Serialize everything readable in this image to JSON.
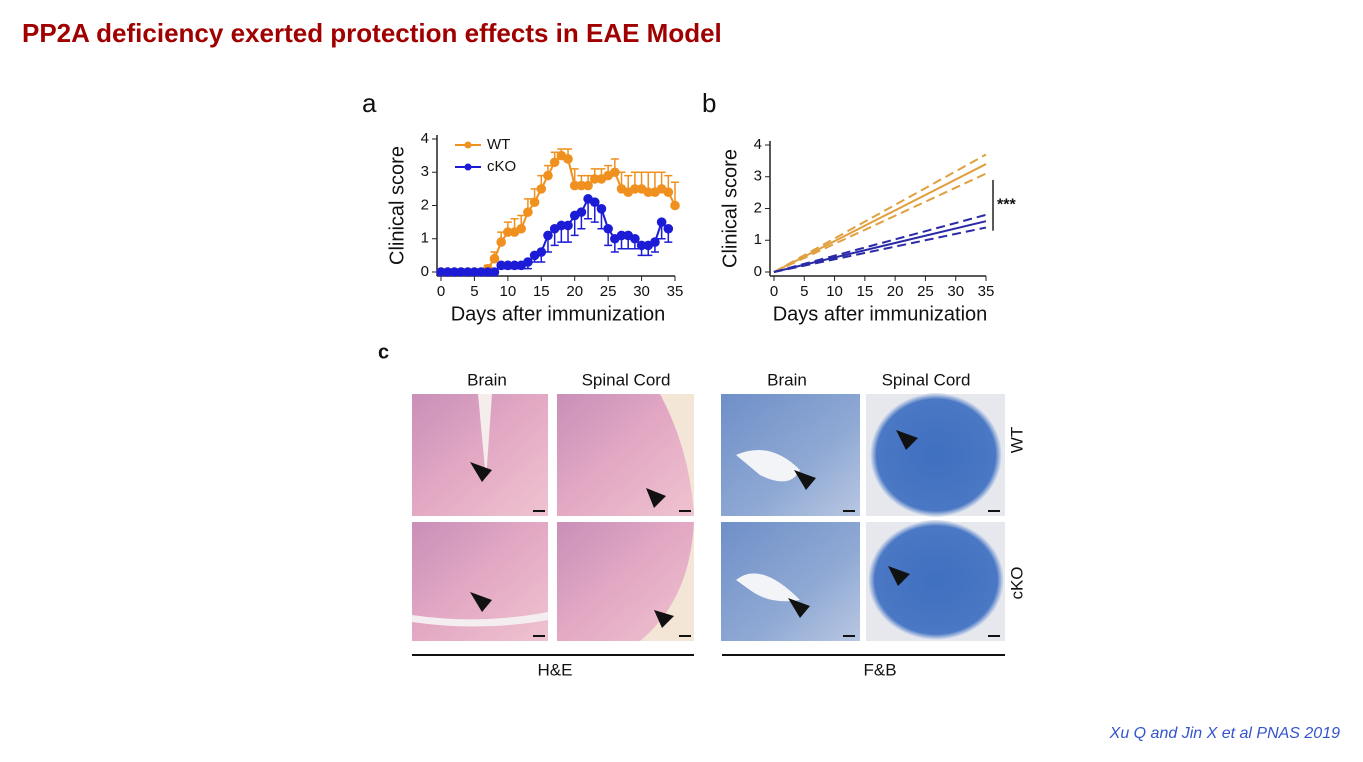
{
  "title": "PP2A deficiency exerted protection effects in EAE Model",
  "chart_data": [
    {
      "type": "line",
      "panel": "a",
      "xlabel": "Days after immunization",
      "ylabel": "Clinical score",
      "x": [
        0,
        1,
        2,
        3,
        4,
        5,
        6,
        7,
        8,
        9,
        10,
        11,
        12,
        13,
        14,
        15,
        16,
        17,
        18,
        19,
        20,
        21,
        22,
        23,
        24,
        25,
        26,
        27,
        28,
        29,
        30,
        31,
        32,
        33,
        34,
        35
      ],
      "xlim": [
        0,
        35
      ],
      "xticks": [
        0,
        5,
        10,
        15,
        20,
        25,
        30,
        35
      ],
      "ylim": [
        0,
        4
      ],
      "yticks": [
        0,
        1,
        2,
        3,
        4
      ],
      "legend": "top-left",
      "series": [
        {
          "name": "WT",
          "color": "#f0901e",
          "error_side": "up",
          "values": [
            0,
            0,
            0,
            0,
            0,
            0,
            0,
            0.1,
            0.4,
            0.9,
            1.2,
            1.2,
            1.3,
            1.8,
            2.1,
            2.5,
            2.9,
            3.3,
            3.5,
            3.4,
            2.6,
            2.6,
            2.6,
            2.8,
            2.8,
            2.9,
            3.0,
            2.5,
            2.4,
            2.5,
            2.5,
            2.4,
            2.4,
            2.5,
            2.4,
            2.0
          ],
          "errors": [
            0,
            0,
            0,
            0,
            0,
            0,
            0,
            0.1,
            0.2,
            0.3,
            0.3,
            0.4,
            0.4,
            0.4,
            0.4,
            0.4,
            0.3,
            0.3,
            0.2,
            0.3,
            0.5,
            0.3,
            0.3,
            0.3,
            0.3,
            0.3,
            0.4,
            0.5,
            0.5,
            0.5,
            0.5,
            0.6,
            0.6,
            0.5,
            0.5,
            0.7
          ]
        },
        {
          "name": "cKO",
          "color": "#1c1cd6",
          "error_side": "down",
          "values": [
            0,
            0,
            0,
            0,
            0,
            0,
            0,
            0,
            0,
            0.2,
            0.2,
            0.2,
            0.2,
            0.3,
            0.5,
            0.6,
            1.1,
            1.3,
            1.4,
            1.4,
            1.7,
            1.8,
            2.2,
            2.1,
            1.9,
            1.3,
            1.0,
            1.1,
            1.1,
            1.0,
            0.8,
            0.8,
            0.9,
            1.5,
            1.3,
            null
          ],
          "errors": [
            0,
            0,
            0,
            0,
            0,
            0,
            0,
            0,
            0,
            0.1,
            0.1,
            0.1,
            0.1,
            0.2,
            0.2,
            0.3,
            0.5,
            0.5,
            0.5,
            0.5,
            0.6,
            0.5,
            0.6,
            0.6,
            0.6,
            0.5,
            0.4,
            0.4,
            0.4,
            0.3,
            0.3,
            0.3,
            0.3,
            0.5,
            0.4,
            null
          ]
        }
      ]
    },
    {
      "type": "line",
      "panel": "b",
      "xlabel": "Days after immunization",
      "ylabel": "Clinical score",
      "x": [
        0,
        35
      ],
      "xlim": [
        0,
        35
      ],
      "xticks": [
        0,
        5,
        10,
        15,
        20,
        25,
        30,
        35
      ],
      "ylim": [
        0,
        4
      ],
      "yticks": [
        0,
        1,
        2,
        3,
        4
      ],
      "series": [
        {
          "color": "#e0a040",
          "dash": false,
          "values": [
            0,
            3.4
          ]
        },
        {
          "color": "#e0a040",
          "dash": true,
          "values": [
            0,
            3.7
          ]
        },
        {
          "color": "#e0a040",
          "dash": true,
          "values": [
            0,
            3.1
          ]
        },
        {
          "color": "#2a2aa8",
          "dash": false,
          "values": [
            0,
            1.6
          ]
        },
        {
          "color": "#2a2aa8",
          "dash": true,
          "values": [
            0,
            1.8
          ]
        },
        {
          "color": "#2a2aa8",
          "dash": true,
          "values": [
            0,
            1.4
          ]
        }
      ],
      "annotation": {
        "text": "***",
        "y_range": [
          2.9,
          1.3
        ]
      }
    }
  ],
  "panel_c": {
    "label": "c",
    "columns": [
      "Brain",
      "Spinal Cord",
      "Brain",
      "Spinal Cord"
    ],
    "rows": [
      "WT",
      "cKO"
    ],
    "stains": [
      "H&E",
      "F&B"
    ]
  },
  "citation": "Xu Q and Jin X et al PNAS 2019"
}
